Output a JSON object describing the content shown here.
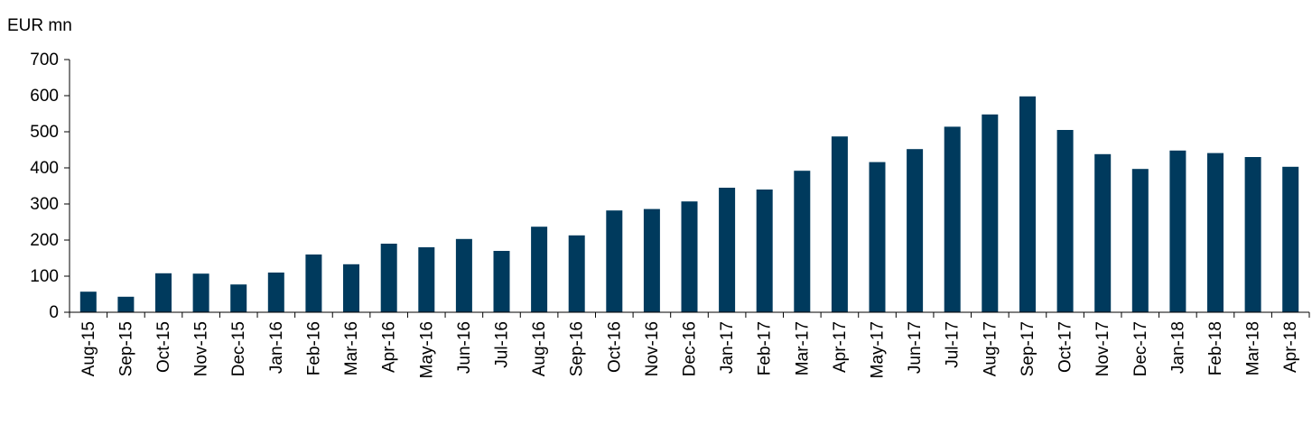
{
  "chart_data": {
    "type": "bar",
    "title": "",
    "ylabel": "EUR mn",
    "xlabel": "",
    "ylim": [
      0,
      700
    ],
    "yticks": [
      0,
      100,
      200,
      300,
      400,
      500,
      600,
      700
    ],
    "grid": false,
    "bar_color": "#003a5d",
    "categories": [
      "Aug-15",
      "Sep-15",
      "Oct-15",
      "Nov-15",
      "Dec-15",
      "Jan-16",
      "Feb-16",
      "Mar-16",
      "Apr-16",
      "May-16",
      "Jun-16",
      "Jul-16",
      "Aug-16",
      "Sep-16",
      "Oct-16",
      "Nov-16",
      "Dec-16",
      "Jan-17",
      "Feb-17",
      "Mar-17",
      "Apr-17",
      "May-17",
      "Jun-17",
      "Jul-17",
      "Aug-17",
      "Sep-17",
      "Oct-17",
      "Nov-17",
      "Dec-17",
      "Jan-18",
      "Feb-18",
      "Mar-18",
      "Apr-18"
    ],
    "values": [
      57,
      43,
      108,
      107,
      77,
      110,
      160,
      133,
      190,
      180,
      203,
      170,
      237,
      213,
      282,
      286,
      307,
      345,
      340,
      392,
      487,
      416,
      452,
      514,
      548,
      598,
      505,
      438,
      397,
      448,
      441,
      430,
      403
    ]
  }
}
